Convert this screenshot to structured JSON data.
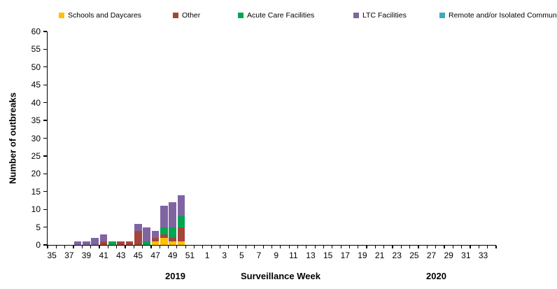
{
  "chart_data": {
    "type": "bar",
    "stacked": true,
    "title": "",
    "xlabel": "Surveillance Week",
    "ylabel": "Number of outbreaks",
    "year_labels": [
      "2019",
      "2020"
    ],
    "ylim": [
      0,
      60
    ],
    "ytick_step": 5,
    "grid": false,
    "legend_position": "top",
    "x_slot_weeks_2019": [
      35,
      36,
      37,
      38,
      39,
      40,
      41,
      42,
      43,
      44,
      45,
      46,
      47,
      48,
      49,
      50,
      51,
      52
    ],
    "x_slot_weeks_2020": [
      1,
      2,
      3,
      4,
      5,
      6,
      7,
      8,
      9,
      10,
      11,
      12,
      13,
      14,
      15,
      16,
      17,
      18,
      19,
      20,
      21,
      22,
      23,
      24,
      25,
      26,
      27,
      28,
      29,
      30,
      31,
      32,
      33,
      34
    ],
    "x_labels_shown": [
      "35",
      "37",
      "39",
      "41",
      "43",
      "45",
      "47",
      "49",
      "51",
      "1",
      "3",
      "5",
      "7",
      "9",
      "11",
      "13",
      "15",
      "17",
      "19",
      "21",
      "23",
      "25",
      "27",
      "29",
      "31",
      "33"
    ],
    "series": [
      {
        "name": "Schools and Daycares",
        "color": "#FFC000",
        "values_2019": {
          "47": 1,
          "48": 2,
          "49": 1,
          "50": 1
        }
      },
      {
        "name": "Other",
        "color": "#A5443B",
        "values_2019": {
          "41": 1,
          "43": 1,
          "44": 1,
          "45": 4,
          "47": 1,
          "48": 1,
          "49": 1,
          "50": 4
        }
      },
      {
        "name": "Acute Care Facilities",
        "color": "#00A550",
        "values_2019": {
          "42": 1,
          "46": 1,
          "48": 2,
          "49": 3,
          "50": 3
        }
      },
      {
        "name": "LTC Facilities",
        "color": "#8064A2",
        "values_2019": {
          "38": 1,
          "39": 1,
          "40": 2,
          "41": 2,
          "45": 2,
          "46": 4,
          "47": 2,
          "48": 6,
          "49": 7,
          "50": 6
        }
      },
      {
        "name": "Remote and/or Isolated Communities",
        "color": "#41A8BD",
        "values_2019": {}
      }
    ],
    "totals_by_week_2019": {
      "38": 1,
      "39": 1,
      "40": 2,
      "41": 3,
      "42": 1,
      "43": 1,
      "44": 1,
      "45": 6,
      "46": 5,
      "47": 4,
      "48": 11,
      "49": 12,
      "50": 14
    }
  }
}
